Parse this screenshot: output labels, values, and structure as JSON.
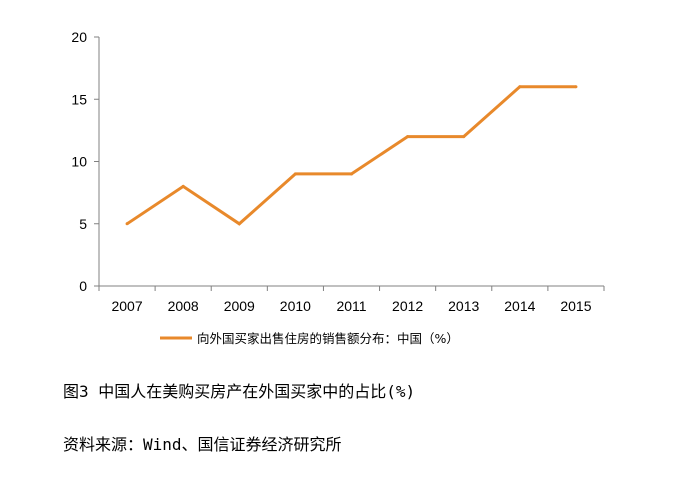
{
  "chart_data": {
    "type": "line",
    "title": "",
    "xlabel": "",
    "ylabel": "",
    "categories": [
      "2007",
      "2008",
      "2009",
      "2010",
      "2011",
      "2012",
      "2013",
      "2014",
      "2015"
    ],
    "series": [
      {
        "name": "向外国买家出售住房的销售额分布：中国（%）",
        "values": [
          5,
          8,
          5,
          9,
          9,
          12,
          12,
          16,
          16
        ],
        "color": "#E8892B"
      }
    ],
    "ylim": [
      0,
      20
    ],
    "yticks": [
      0,
      5,
      10,
      15,
      20
    ],
    "grid": false,
    "legend_position": "bottom"
  },
  "caption": {
    "figure": "图3 中国人在美购买房产在外国买家中的占比(%)",
    "source": "资料来源：Wind、国信证券经济研究所"
  }
}
